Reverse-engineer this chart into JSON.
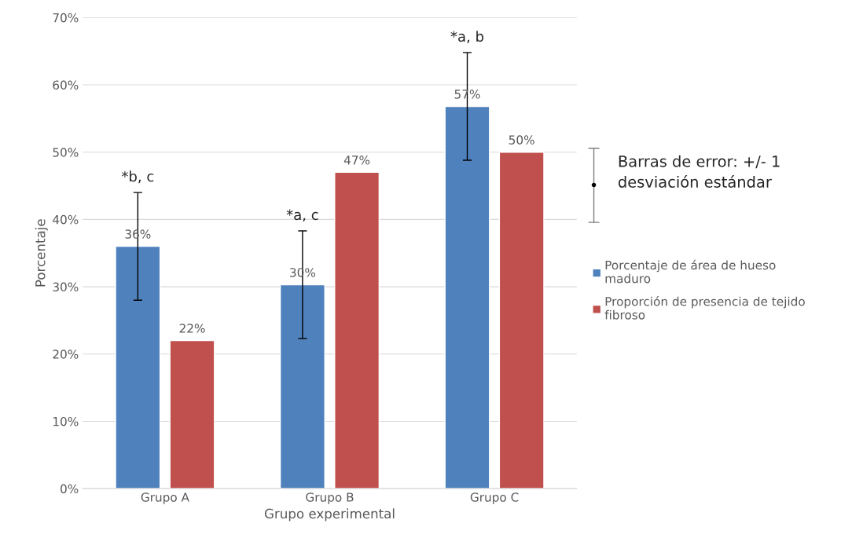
{
  "chart_data": {
    "type": "bar",
    "xlabel": "Grupo experimental",
    "ylabel": "Porcentaje",
    "categories": [
      "Grupo A",
      "Grupo B",
      "Grupo C"
    ],
    "series": [
      {
        "name": "Porcentaje de área de hueso\nmaduro",
        "color": "#4f81bd",
        "values": [
          36,
          30.3,
          56.8
        ],
        "errors": [
          8,
          8,
          8
        ],
        "value_labels": [
          "36%",
          "30%",
          "57%"
        ]
      },
      {
        "name": "Proporción de presencia de tejido\nfibroso",
        "color": "#c0504d",
        "values": [
          22,
          47,
          50
        ],
        "value_labels": [
          "22%",
          "47%",
          "50%"
        ]
      }
    ],
    "ylim": [
      0,
      70
    ],
    "yticks": [
      {
        "value": 0,
        "label": "0%"
      },
      {
        "value": 10,
        "label": "10%"
      },
      {
        "value": 20,
        "label": "20%"
      },
      {
        "value": 30,
        "label": "30%"
      },
      {
        "value": 40,
        "label": "40%"
      },
      {
        "value": 50,
        "label": "50%"
      },
      {
        "value": 60,
        "label": "60%"
      },
      {
        "value": 70,
        "label": "70%"
      }
    ],
    "grid": "y",
    "legend": "right",
    "annotations": [
      "*b, c",
      "*a, c",
      "*a, b",
      "Barras de error: +/- 1\ndesviación estándar"
    ]
  }
}
